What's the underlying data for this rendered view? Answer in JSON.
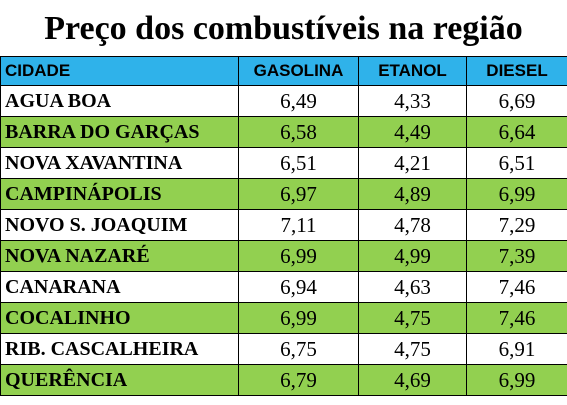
{
  "title": "Preço dos combustíveis na região",
  "table": {
    "headers": [
      "CIDADE",
      "GASOLINA",
      "ETANOL",
      "DIESEL"
    ],
    "rows": [
      [
        "AGUA BOA",
        "6,49",
        "4,33",
        "6,69"
      ],
      [
        "BARRA DO GARÇAS",
        "6,58",
        "4,49",
        "6,64"
      ],
      [
        "NOVA XAVANTINA",
        "6,51",
        "4,21",
        "6,51"
      ],
      [
        "CAMPINÁPOLIS",
        "6,97",
        "4,89",
        "6,99"
      ],
      [
        "NOVO S. JOAQUIM",
        "7,11",
        "4,78",
        "7,29"
      ],
      [
        "NOVA NAZARÉ",
        "6,99",
        "4,99",
        "7,39"
      ],
      [
        "CANARANA",
        "6,94",
        "4,63",
        "7,46"
      ],
      [
        "COCALINHO",
        "6,99",
        "4,75",
        "7,46"
      ],
      [
        "RIB. CASCALHEIRA",
        "6,75",
        "4,75",
        "6,91"
      ],
      [
        "QUERÊNCIA",
        "6,79",
        "4,69",
        "6,99"
      ]
    ]
  }
}
